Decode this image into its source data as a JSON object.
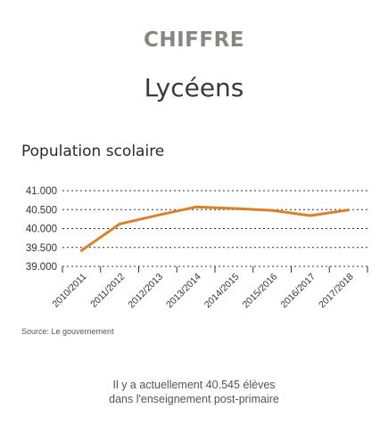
{
  "header": {
    "kicker": "CHIFFRE",
    "headline": "Lycéens"
  },
  "chart_data": {
    "type": "line",
    "title": "Population scolaire",
    "xlabel": "",
    "ylabel": "",
    "categories": [
      "2010/2011",
      "2011/2012",
      "2012/2013",
      "2013/2014",
      "2014/2015",
      "2015/2016",
      "2016/2017",
      "2017/2018"
    ],
    "values": [
      39420,
      40120,
      40350,
      40570,
      40530,
      40480,
      40340,
      40490
    ],
    "ylim": [
      39000,
      41000
    ],
    "yticks": [
      39000,
      39500,
      40000,
      40500,
      41000
    ],
    "ytick_labels": [
      "39.000",
      "39.500",
      "40.000",
      "40.500",
      "41.000"
    ],
    "grid": true,
    "line_color": "#d9822b"
  },
  "footer": {
    "source": "Source: Le gouvernement",
    "note_line1": "Il y a actuellement 40.545 élèves",
    "note_line2": "dans l'enseignement post-primaire"
  }
}
